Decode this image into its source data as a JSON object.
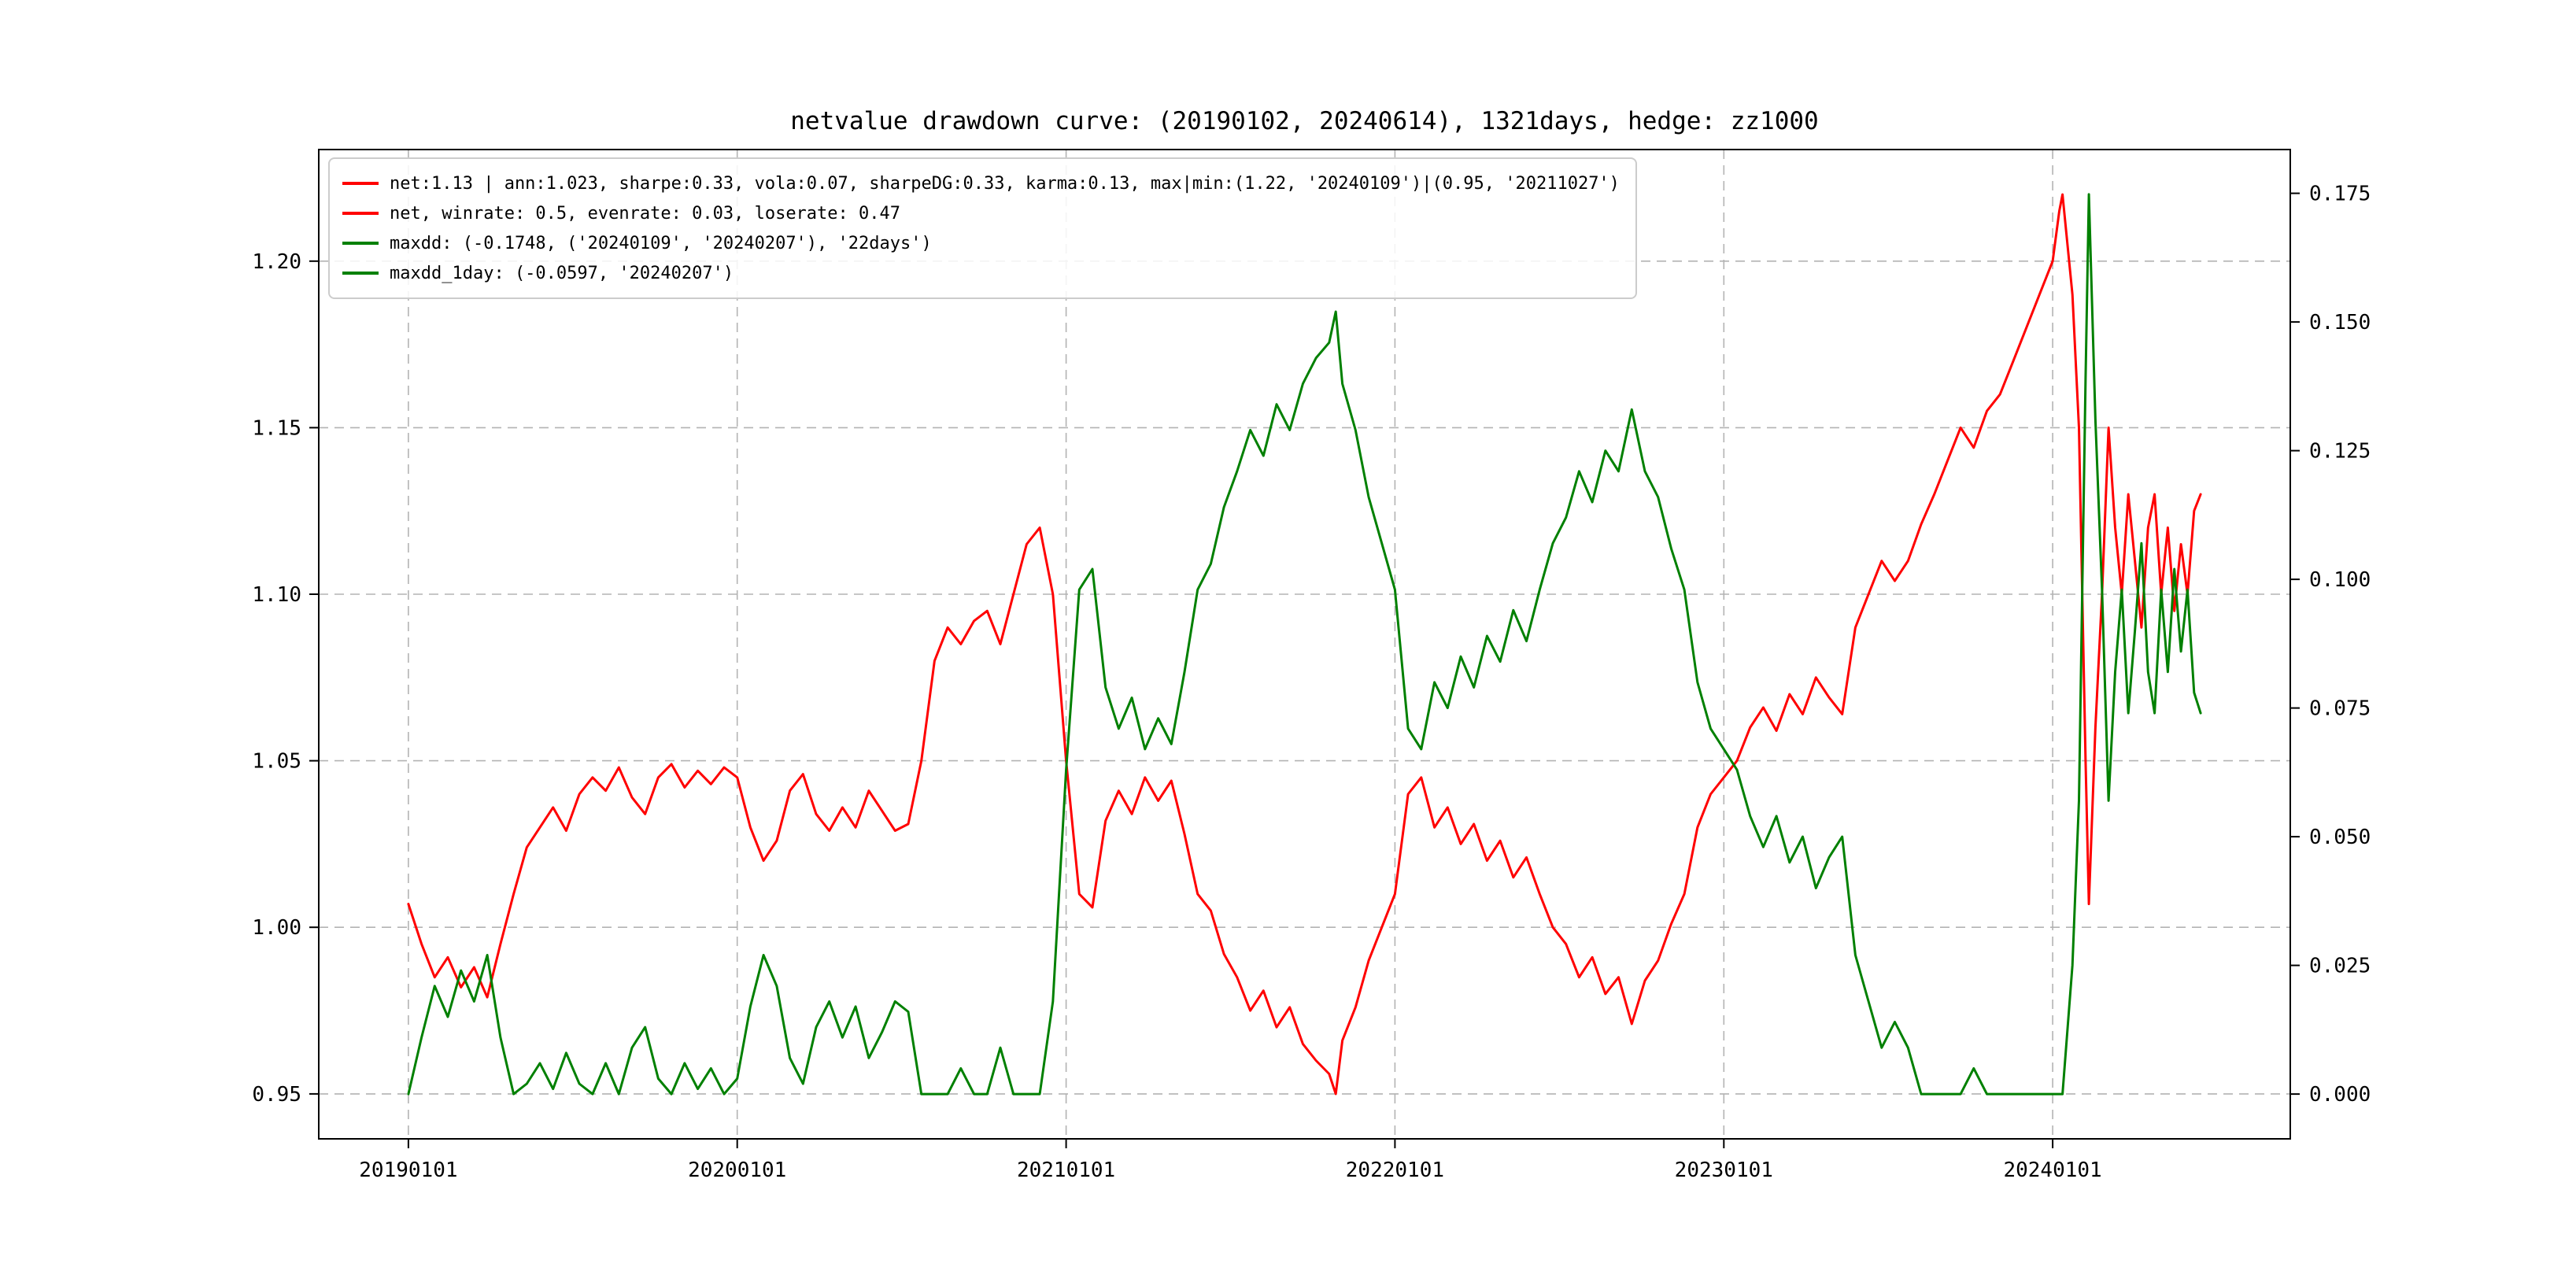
{
  "figure": {
    "title": "netvalue drawdown curve: (20190102, 20240614), 1321days, hedge: zz1000",
    "background": "#ffffff"
  },
  "legend": {
    "position": "upper left",
    "items": [
      {
        "series": "net-stats",
        "color": "#ff0000",
        "label": "net:1.13 | ann:1.023, sharpe:0.33, vola:0.07, sharpeDG:0.33, karma:0.13, max|min:(1.22, '20240109')|(0.95, '20211027')"
      },
      {
        "series": "net-rates",
        "color": "#ff0000",
        "label": "net, winrate: 0.5, evenrate: 0.03, loserate: 0.47"
      },
      {
        "series": "maxdd",
        "color": "#008000",
        "label": "maxdd: (-0.1748, ('20240109', '20240207'), '22days')"
      },
      {
        "series": "maxdd-1day",
        "color": "#008000",
        "label": "maxdd_1day: (-0.0597, '20240207')"
      }
    ]
  },
  "chart_data": {
    "type": "line",
    "title": "netvalue drawdown curve: (20190102, 20240614), 1321days, hedge: zz1000",
    "grid": true,
    "grid_style": "dashed",
    "grid_color": "#b3b3b3",
    "legend_position": "upper left",
    "x_tick_labels": [
      "20190101",
      "20200101",
      "20210101",
      "20220101",
      "20230101",
      "20240101"
    ],
    "x_tick_values": [
      2019,
      2020,
      2021,
      2022,
      2023,
      2024
    ],
    "x_range": [
      2018.7275,
      2024.7225
    ],
    "left_axis": {
      "label": "",
      "tick_labels": [
        "0.95",
        "1.00",
        "1.05",
        "1.10",
        "1.15",
        "1.20"
      ],
      "tick_values": [
        0.95,
        1.0,
        1.05,
        1.1,
        1.15,
        1.2
      ],
      "range": [
        0.9365,
        1.2335
      ]
    },
    "right_axis": {
      "label": "",
      "tick_labels": [
        "0.000",
        "0.025",
        "0.050",
        "0.075",
        "0.100",
        "0.125",
        "0.150",
        "0.175"
      ],
      "tick_values": [
        0.0,
        0.025,
        0.05,
        0.075,
        0.1,
        0.125,
        0.15,
        0.175
      ],
      "range": [
        -0.0087,
        0.1835
      ]
    },
    "x": [
      2019.0,
      2019.04,
      2019.08,
      2019.12,
      2019.16,
      2019.2,
      2019.24,
      2019.28,
      2019.32,
      2019.36,
      2019.4,
      2019.44,
      2019.48,
      2019.52,
      2019.56,
      2019.6,
      2019.64,
      2019.68,
      2019.72,
      2019.76,
      2019.8,
      2019.84,
      2019.88,
      2019.92,
      2019.96,
      2020.0,
      2020.04,
      2020.08,
      2020.12,
      2020.16,
      2020.2,
      2020.24,
      2020.28,
      2020.32,
      2020.36,
      2020.4,
      2020.44,
      2020.48,
      2020.52,
      2020.56,
      2020.6,
      2020.64,
      2020.68,
      2020.72,
      2020.76,
      2020.8,
      2020.84,
      2020.88,
      2020.92,
      2020.96,
      2021.0,
      2021.04,
      2021.08,
      2021.12,
      2021.16,
      2021.2,
      2021.24,
      2021.28,
      2021.32,
      2021.36,
      2021.4,
      2021.44,
      2021.48,
      2021.52,
      2021.56,
      2021.6,
      2021.64,
      2021.68,
      2021.72,
      2021.76,
      2021.8,
      2021.82,
      2021.84,
      2021.88,
      2021.92,
      2021.96,
      2022.0,
      2022.04,
      2022.08,
      2022.12,
      2022.16,
      2022.2,
      2022.24,
      2022.28,
      2022.32,
      2022.36,
      2022.4,
      2022.44,
      2022.48,
      2022.52,
      2022.56,
      2022.6,
      2022.64,
      2022.68,
      2022.72,
      2022.76,
      2022.8,
      2022.84,
      2022.88,
      2022.92,
      2022.96,
      2023.0,
      2023.04,
      2023.08,
      2023.12,
      2023.16,
      2023.2,
      2023.24,
      2023.28,
      2023.32,
      2023.36,
      2023.4,
      2023.44,
      2023.48,
      2023.52,
      2023.56,
      2023.6,
      2023.64,
      2023.68,
      2023.72,
      2023.76,
      2023.8,
      2023.84,
      2023.88,
      2023.92,
      2023.96,
      2024.0,
      2024.02,
      2024.03,
      2024.06,
      2024.08,
      2024.1,
      2024.11,
      2024.13,
      2024.15,
      2024.17,
      2024.19,
      2024.21,
      2024.23,
      2024.25,
      2024.27,
      2024.29,
      2024.31,
      2024.33,
      2024.35,
      2024.37,
      2024.39,
      2024.41,
      2024.43,
      2024.45
    ],
    "series": [
      {
        "name": "net",
        "axis": "left",
        "color": "#ff0000",
        "values": [
          1.007,
          0.995,
          0.985,
          0.991,
          0.982,
          0.988,
          0.979,
          0.995,
          1.01,
          1.024,
          1.03,
          1.036,
          1.029,
          1.04,
          1.045,
          1.041,
          1.048,
          1.039,
          1.034,
          1.045,
          1.049,
          1.042,
          1.047,
          1.043,
          1.048,
          1.045,
          1.03,
          1.02,
          1.026,
          1.041,
          1.046,
          1.034,
          1.029,
          1.036,
          1.03,
          1.041,
          1.035,
          1.029,
          1.031,
          1.05,
          1.08,
          1.09,
          1.085,
          1.092,
          1.095,
          1.085,
          1.1,
          1.115,
          1.12,
          1.1,
          1.05,
          1.01,
          1.006,
          1.032,
          1.041,
          1.034,
          1.045,
          1.038,
          1.044,
          1.028,
          1.01,
          1.005,
          0.992,
          0.985,
          0.975,
          0.981,
          0.97,
          0.976,
          0.965,
          0.96,
          0.956,
          0.95,
          0.966,
          0.976,
          0.99,
          1.0,
          1.01,
          1.04,
          1.045,
          1.03,
          1.036,
          1.025,
          1.031,
          1.02,
          1.026,
          1.015,
          1.021,
          1.01,
          1.0,
          0.995,
          0.985,
          0.991,
          0.98,
          0.985,
          0.971,
          0.984,
          0.99,
          1.001,
          1.01,
          1.03,
          1.04,
          1.045,
          1.05,
          1.06,
          1.066,
          1.059,
          1.07,
          1.064,
          1.075,
          1.069,
          1.064,
          1.09,
          1.1,
          1.11,
          1.104,
          1.11,
          1.121,
          1.13,
          1.14,
          1.15,
          1.144,
          1.155,
          1.16,
          1.17,
          1.18,
          1.19,
          1.2,
          1.215,
          1.22,
          1.19,
          1.15,
          1.05,
          1.007,
          1.06,
          1.1,
          1.15,
          1.12,
          1.1,
          1.13,
          1.11,
          1.09,
          1.12,
          1.13,
          1.1,
          1.12,
          1.095,
          1.115,
          1.1,
          1.125,
          1.13
        ]
      },
      {
        "name": "maxdd",
        "axis": "right",
        "color": "#008000",
        "values": [
          0.0,
          0.011,
          0.021,
          0.015,
          0.024,
          0.018,
          0.027,
          0.011,
          0.0,
          0.002,
          0.006,
          0.001,
          0.008,
          0.002,
          0.0,
          0.006,
          0.0,
          0.009,
          0.013,
          0.003,
          0.0,
          0.006,
          0.001,
          0.005,
          0.0,
          0.003,
          0.017,
          0.027,
          0.021,
          0.007,
          0.002,
          0.013,
          0.018,
          0.011,
          0.017,
          0.007,
          0.012,
          0.018,
          0.016,
          0.0,
          0.0,
          0.0,
          0.005,
          0.0,
          0.0,
          0.009,
          0.0,
          0.0,
          0.0,
          0.018,
          0.063,
          0.098,
          0.102,
          0.079,
          0.071,
          0.077,
          0.067,
          0.073,
          0.068,
          0.082,
          0.098,
          0.103,
          0.114,
          0.121,
          0.129,
          0.124,
          0.134,
          0.129,
          0.138,
          0.143,
          0.146,
          0.152,
          0.138,
          0.129,
          0.116,
          0.107,
          0.098,
          0.071,
          0.067,
          0.08,
          0.075,
          0.085,
          0.079,
          0.089,
          0.084,
          0.094,
          0.088,
          0.098,
          0.107,
          0.112,
          0.121,
          0.115,
          0.125,
          0.121,
          0.133,
          0.121,
          0.116,
          0.106,
          0.098,
          0.08,
          0.071,
          0.067,
          0.063,
          0.054,
          0.048,
          0.054,
          0.045,
          0.05,
          0.04,
          0.046,
          0.05,
          0.027,
          0.018,
          0.009,
          0.014,
          0.009,
          0.0,
          0.0,
          0.0,
          0.0,
          0.005,
          0.0,
          0.0,
          0.0,
          0.0,
          0.0,
          0.0,
          0.0,
          0.0,
          0.025,
          0.057,
          0.139,
          0.1748,
          0.131,
          0.098,
          0.057,
          0.082,
          0.098,
          0.074,
          0.09,
          0.107,
          0.082,
          0.074,
          0.098,
          0.082,
          0.102,
          0.086,
          0.098,
          0.078,
          0.074
        ]
      }
    ]
  }
}
